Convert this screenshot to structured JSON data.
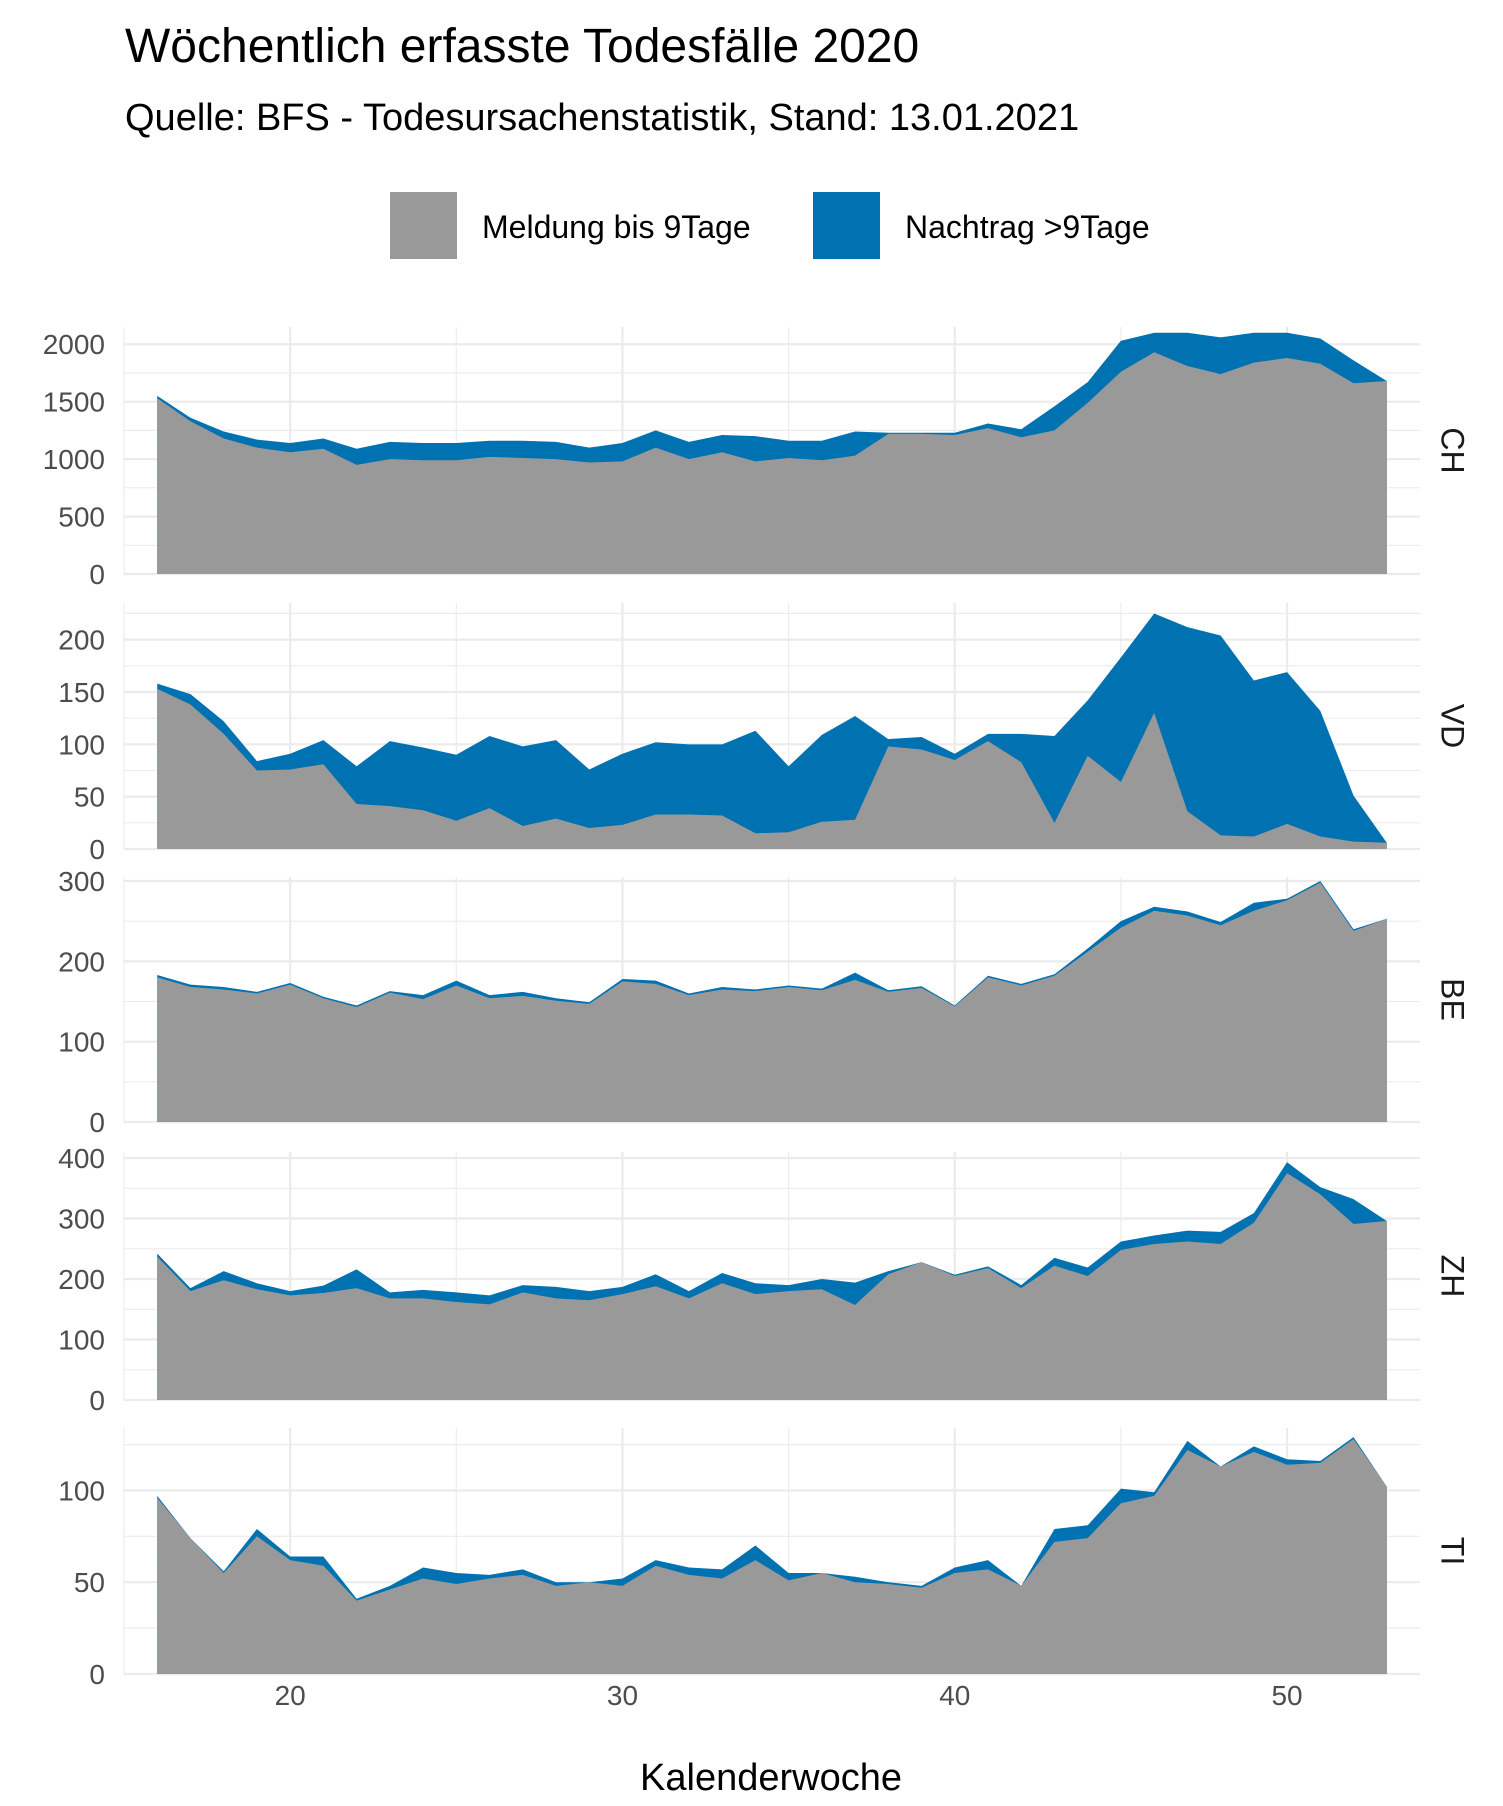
{
  "colors": {
    "Meldung bis 9Tage": "#999999",
    "Nachtrag >9Tage": "#0072B2"
  },
  "chart_data": {
    "type": "area",
    "stacked": true,
    "title": "Wöchentlich erfasste Todesfälle 2020",
    "subtitle": "Quelle: BFS - Todesursachenstatistik, Stand: 13.01.2021",
    "xlabel": "Kalenderwoche",
    "ylabel": "",
    "legend_position": "top",
    "grid": true,
    "x": [
      16,
      17,
      18,
      19,
      20,
      21,
      22,
      23,
      24,
      25,
      26,
      27,
      28,
      29,
      30,
      31,
      32,
      33,
      34,
      35,
      36,
      37,
      38,
      39,
      40,
      41,
      42,
      43,
      44,
      45,
      46,
      47,
      48,
      49,
      50,
      51,
      52,
      53
    ],
    "x_ticks": [
      "20",
      "30",
      "40",
      "50"
    ],
    "xlim": [
      15,
      54
    ],
    "series_names": [
      "Meldung bis 9Tage",
      "Nachtrag >9Tage"
    ],
    "panels": [
      {
        "name": "CH",
        "ylim": [
          0,
          2150
        ],
        "y_ticks": [
          "0",
          "500",
          "1000",
          "1500",
          "2000"
        ],
        "total": [
          1550,
          1360,
          1240,
          1170,
          1140,
          1180,
          1090,
          1150,
          1140,
          1140,
          1160,
          1160,
          1150,
          1100,
          1140,
          1250,
          1150,
          1210,
          1200,
          1160,
          1160,
          1240,
          1230,
          1230,
          1230,
          1310,
          1260,
          1460,
          1670,
          2030,
          2100,
          2100,
          2060,
          2100,
          2100,
          2050,
          1860,
          1680
        ],
        "series": [
          {
            "name": "Meldung bis 9Tage",
            "values": [
              1530,
              1330,
              1180,
              1100,
              1060,
              1090,
              950,
              1000,
              990,
              990,
              1020,
              1010,
              1000,
              970,
              980,
              1100,
              1000,
              1060,
              980,
              1010,
              990,
              1030,
              1220,
              1220,
              1210,
              1270,
              1190,
              1250,
              1490,
              1760,
              1930,
              1810,
              1740,
              1840,
              1880,
              1830,
              1660,
              1680
            ]
          },
          {
            "name": "Nachtrag >9Tage",
            "values": [
              20,
              30,
              60,
              70,
              80,
              90,
              140,
              150,
              150,
              150,
              140,
              150,
              150,
              130,
              160,
              150,
              150,
              150,
              220,
              150,
              170,
              210,
              10,
              10,
              20,
              40,
              70,
              210,
              180,
              270,
              170,
              290,
              320,
              260,
              220,
              220,
              200,
              0
            ]
          }
        ]
      },
      {
        "name": "VD",
        "ylim": [
          0,
          235
        ],
        "y_ticks": [
          "0",
          "50",
          "100",
          "150",
          "200"
        ],
        "total": [
          158,
          148,
          122,
          84,
          91,
          104,
          79,
          103,
          97,
          90,
          108,
          98,
          104,
          76,
          91,
          102,
          100,
          100,
          113,
          79,
          109,
          127,
          105,
          107,
          91,
          110,
          110,
          108,
          142,
          183,
          225,
          212,
          204,
          161,
          169,
          132,
          51,
          6
        ],
        "series": [
          {
            "name": "Meldung bis 9Tage",
            "values": [
              153,
              138,
              110,
              75,
              76,
              81,
              43,
              41,
              37,
              27,
              39,
              22,
              29,
              20,
              23,
              33,
              33,
              32,
              15,
              16,
              26,
              28,
              98,
              95,
              85,
              103,
              83,
              25,
              89,
              64,
              130,
              36,
              13,
              12,
              24,
              12,
              7,
              6
            ]
          },
          {
            "name": "Nachtrag >9Tage",
            "values": [
              5,
              10,
              12,
              9,
              15,
              23,
              36,
              62,
              60,
              63,
              69,
              76,
              75,
              56,
              68,
              69,
              67,
              68,
              98,
              63,
              83,
              99,
              7,
              12,
              6,
              7,
              27,
              83,
              53,
              119,
              95,
              176,
              191,
              149,
              145,
              120,
              44,
              0
            ]
          }
        ]
      },
      {
        "name": "BE",
        "ylim": [
          0,
          305
        ],
        "y_ticks": [
          "0",
          "100",
          "200",
          "300"
        ],
        "total": [
          183,
          171,
          168,
          162,
          173,
          156,
          145,
          163,
          158,
          176,
          158,
          162,
          154,
          149,
          178,
          176,
          160,
          168,
          165,
          170,
          166,
          186,
          164,
          169,
          145,
          182,
          172,
          184,
          216,
          250,
          268,
          262,
          249,
          273,
          278,
          300,
          240,
          253
        ],
        "series": [
          {
            "name": "Meldung bis 9Tage",
            "values": [
              180,
              168,
              165,
              160,
              171,
              154,
              143,
              161,
              153,
              170,
              154,
              157,
              151,
              147,
              175,
              172,
              158,
              165,
              163,
              168,
              164,
              177,
              162,
              167,
              144,
              180,
              170,
              182,
              212,
              242,
              263,
              257,
              245,
              263,
              276,
              298,
              238,
              253
            ]
          },
          {
            "name": "Nachtrag >9Tage",
            "values": [
              3,
              3,
              3,
              2,
              2,
              2,
              2,
              2,
              5,
              6,
              4,
              5,
              3,
              2,
              3,
              4,
              2,
              3,
              2,
              2,
              2,
              9,
              2,
              2,
              1,
              2,
              2,
              2,
              4,
              8,
              5,
              5,
              4,
              10,
              2,
              2,
              2,
              0
            ]
          }
        ]
      },
      {
        "name": "ZH",
        "ylim": [
          0,
          410
        ],
        "y_ticks": [
          "0",
          "100",
          "200",
          "300",
          "400"
        ],
        "total": [
          242,
          185,
          213,
          193,
          180,
          189,
          216,
          178,
          182,
          178,
          173,
          190,
          187,
          180,
          187,
          208,
          180,
          210,
          193,
          190,
          200,
          194,
          213,
          228,
          207,
          221,
          190,
          235,
          219,
          262,
          272,
          280,
          278,
          309,
          393,
          352,
          332,
          296
        ],
        "series": [
          {
            "name": "Meldung bis 9Tage",
            "values": [
              237,
              180,
              198,
              183,
              173,
              177,
              185,
              168,
              168,
              162,
              158,
              178,
              168,
              165,
              175,
              188,
              168,
              193,
              175,
              180,
              183,
              157,
              208,
              228,
              205,
              218,
              185,
              222,
              205,
              248,
              258,
              262,
              258,
              293,
              375,
              340,
              291,
              296
            ]
          },
          {
            "name": "Nachtrag >9Tage",
            "values": [
              5,
              5,
              15,
              10,
              7,
              12,
              31,
              10,
              14,
              16,
              15,
              12,
              19,
              15,
              12,
              20,
              12,
              17,
              18,
              10,
              17,
              37,
              5,
              0,
              2,
              3,
              5,
              13,
              14,
              14,
              14,
              18,
              20,
              16,
              18,
              12,
              41,
              0
            ]
          }
        ]
      },
      {
        "name": "TI",
        "ylim": [
          0,
          134
        ],
        "y_ticks": [
          "0",
          "50",
          "100"
        ],
        "total": [
          97,
          74,
          56,
          79,
          64,
          64,
          41,
          48,
          58,
          55,
          54,
          57,
          50,
          50,
          52,
          62,
          58,
          57,
          70,
          55,
          55,
          53,
          50,
          48,
          58,
          62,
          48,
          79,
          81,
          101,
          99,
          127,
          113,
          124,
          117,
          116,
          129,
          102
        ],
        "series": [
          {
            "name": "Meldung bis 9Tage",
            "values": [
              96,
              74,
              55,
              75,
              62,
              59,
              40,
              46,
              52,
              49,
              52,
              54,
              48,
              50,
              48,
              59,
              54,
              52,
              62,
              51,
              55,
              50,
              49,
              47,
              55,
              57,
              48,
              72,
              74,
              93,
              97,
              122,
              113,
              121,
              114,
              115,
              128,
              102
            ]
          },
          {
            "name": "Nachtrag >9Tage",
            "values": [
              1,
              0,
              1,
              4,
              2,
              5,
              1,
              2,
              6,
              6,
              2,
              3,
              2,
              0,
              4,
              3,
              4,
              5,
              8,
              4,
              0,
              3,
              1,
              1,
              3,
              5,
              0,
              7,
              7,
              8,
              2,
              5,
              0,
              3,
              3,
              1,
              1,
              0
            ]
          }
        ]
      }
    ]
  }
}
